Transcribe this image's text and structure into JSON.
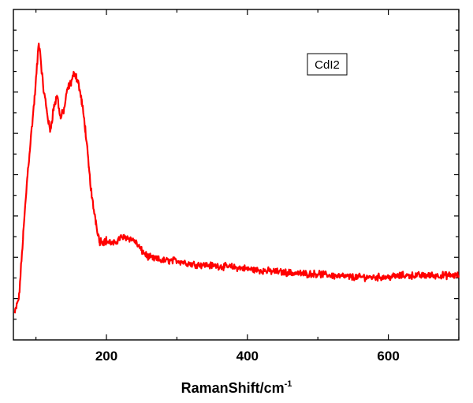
{
  "colors": {
    "series": "#ff0000",
    "axis": "#000000",
    "background": "#ffffff"
  },
  "chart_data": {
    "type": "line",
    "title": "",
    "xlabel": "RamanShift/cm",
    "xlabel_superscript": "-1",
    "ylabel": "",
    "xlim": [
      68,
      700
    ],
    "ylim": [
      0,
      100
    ],
    "xticks": [
      200,
      400,
      600
    ],
    "xtick_labels": [
      "200",
      "400",
      "600"
    ],
    "ytick_labels": [],
    "grid": false,
    "legend": {
      "text": "CdI2",
      "placement": "top-right"
    },
    "series": [
      {
        "name": "CdI2",
        "x": [
          70,
          76,
          82,
          88,
          94,
          98,
          102,
          104,
          106,
          110,
          115,
          120,
          125,
          130,
          135,
          140,
          145,
          150,
          155,
          160,
          165,
          170,
          175,
          180,
          185,
          190,
          200,
          210,
          220,
          230,
          240,
          250,
          260,
          280,
          300,
          320,
          350,
          380,
          400,
          420,
          450,
          480,
          500,
          520,
          550,
          580,
          600,
          620,
          650,
          680,
          700
        ],
        "y": [
          8,
          13,
          32,
          50,
          64,
          73,
          84,
          90,
          87,
          77,
          70,
          63,
          70,
          74,
          67,
          70,
          76,
          78,
          81,
          78,
          72,
          64,
          52,
          42,
          36,
          30,
          30,
          29,
          31,
          31,
          30,
          27,
          25,
          24,
          24,
          23,
          22.5,
          22,
          21.5,
          21,
          20.5,
          20,
          20,
          19.5,
          19,
          19,
          19,
          19.5,
          19.5,
          19.5,
          19.5
        ]
      }
    ]
  }
}
